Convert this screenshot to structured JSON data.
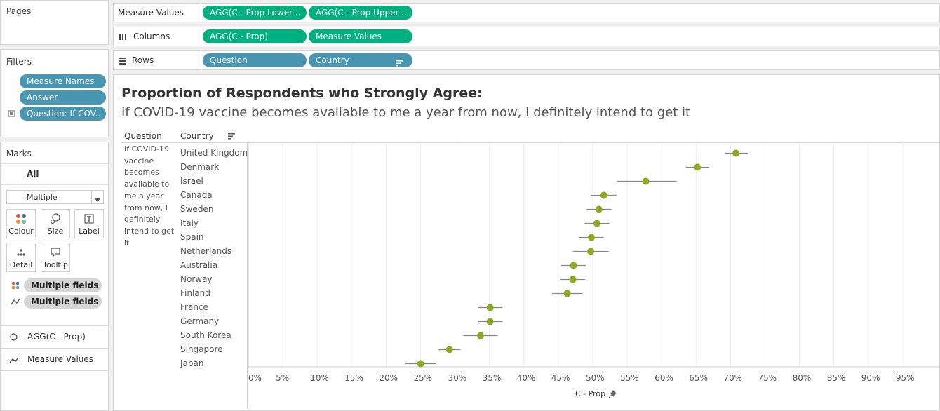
{
  "sidebar": {
    "pages_label": "Pages",
    "filters_label": "Filters",
    "filters": [
      "Measure Names",
      "Answer",
      "Question: If COV.."
    ],
    "marks_label": "Marks",
    "marks_all": "All",
    "mark_type": "Multiple",
    "buttons": [
      "Colour",
      "Size",
      "Label",
      "Detail",
      "Tooltip"
    ],
    "fields": [
      "Multiple fields",
      "Multiple fields"
    ],
    "mark_cards": [
      "AGG(C - Prop)",
      "Measure Values"
    ]
  },
  "shelves": {
    "measure_values_label": "Measure Values",
    "measure_values_pills": [
      "AGG(C - Prop Lower ..",
      "AGG(C - Prop Upper .."
    ],
    "columns_label": "Columns",
    "columns_pills": [
      "AGG(C - Prop)",
      "Measure Values"
    ],
    "rows_label": "Rows",
    "rows_pills": [
      "Question",
      "Country"
    ]
  },
  "colors": {
    "pill_blue": "#4996b2",
    "pill_green": "#00b180",
    "point": "#8aaa1f",
    "error_bar": "#8a8a8a"
  },
  "view": {
    "title": "Proportion of Respondents who Strongly Agree:",
    "subtitle": "If COVID-19 vaccine becomes available to me a year from now, I definitely intend to get it",
    "question_header": "Question",
    "country_header": "Country",
    "question_lines": [
      "If COVID-19",
      "vaccine",
      "becomes",
      "available to",
      "me a year",
      "from now, I",
      "definitely",
      "intend to get",
      "it"
    ]
  },
  "chart_data": {
    "type": "scatter",
    "xlabel": "C - Prop",
    "x_ticks": [
      "0%",
      "5%",
      "10%",
      "15%",
      "20%",
      "25%",
      "30%",
      "35%",
      "40%",
      "45%",
      "50%",
      "55%",
      "60%",
      "65%",
      "70%",
      "75%",
      "80%",
      "85%",
      "90%",
      "95%"
    ],
    "xlim": [
      0,
      1
    ],
    "grid": true,
    "series": [
      {
        "country": "United Kingdom",
        "value": 0.708,
        "lower": 0.692,
        "upper": 0.725
      },
      {
        "country": "Denmark",
        "value": 0.652,
        "lower": 0.635,
        "upper": 0.669
      },
      {
        "country": "Israel",
        "value": 0.577,
        "lower": 0.535,
        "upper": 0.622
      },
      {
        "country": "Canada",
        "value": 0.516,
        "lower": 0.497,
        "upper": 0.535
      },
      {
        "country": "Sweden",
        "value": 0.509,
        "lower": 0.491,
        "upper": 0.527
      },
      {
        "country": "Italy",
        "value": 0.506,
        "lower": 0.488,
        "upper": 0.524
      },
      {
        "country": "Spain",
        "value": 0.498,
        "lower": 0.48,
        "upper": 0.516
      },
      {
        "country": "Netherlands",
        "value": 0.497,
        "lower": 0.471,
        "upper": 0.523
      },
      {
        "country": "Australia",
        "value": 0.472,
        "lower": 0.454,
        "upper": 0.49
      },
      {
        "country": "Norway",
        "value": 0.471,
        "lower": 0.453,
        "upper": 0.489
      },
      {
        "country": "Finland",
        "value": 0.463,
        "lower": 0.441,
        "upper": 0.485
      },
      {
        "country": "France",
        "value": 0.351,
        "lower": 0.333,
        "upper": 0.369
      },
      {
        "country": "Germany",
        "value": 0.351,
        "lower": 0.333,
        "upper": 0.369
      },
      {
        "country": "South Korea",
        "value": 0.337,
        "lower": 0.312,
        "upper": 0.362
      },
      {
        "country": "Singapore",
        "value": 0.292,
        "lower": 0.276,
        "upper": 0.308
      },
      {
        "country": "Japan",
        "value": 0.25,
        "lower": 0.228,
        "upper": 0.272
      }
    ]
  }
}
